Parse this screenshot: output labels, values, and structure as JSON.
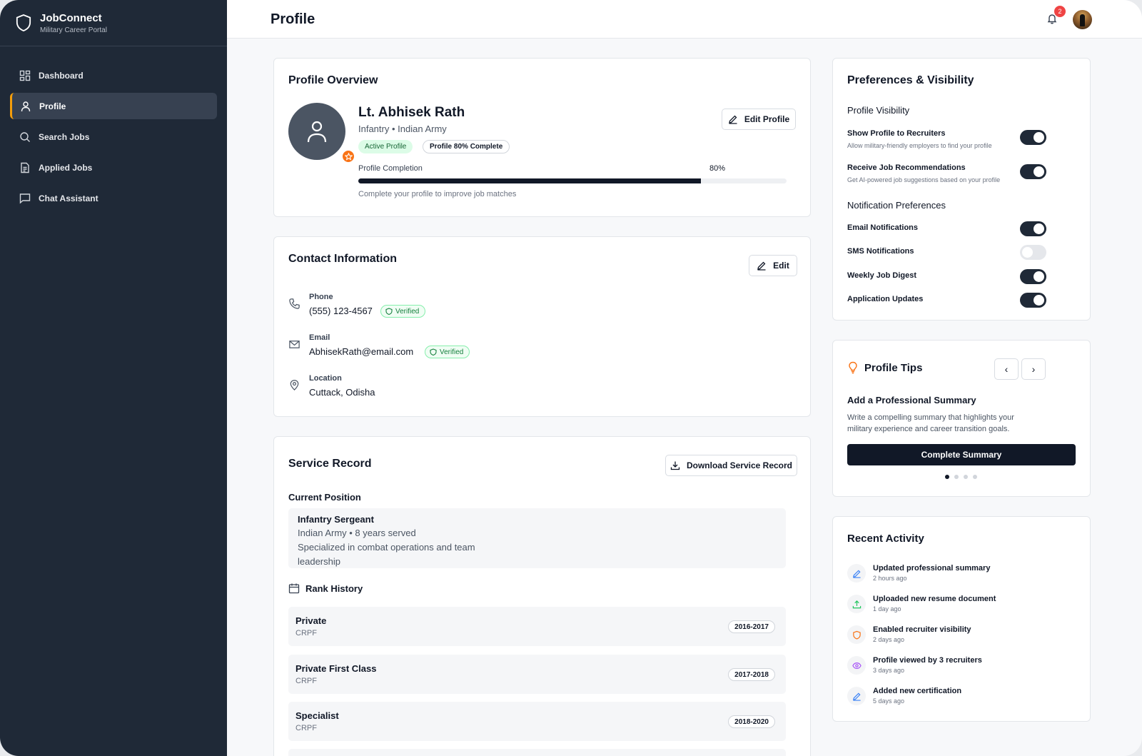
{
  "app": {
    "name": "JobConnect",
    "tagline": "Military Career Portal"
  },
  "sidebar": {
    "items": [
      {
        "label": "Dashboard",
        "icon": "grid-icon"
      },
      {
        "label": "Profile",
        "icon": "user-icon",
        "active": true
      },
      {
        "label": "Search Jobs",
        "icon": "search-icon"
      },
      {
        "label": "Applied Jobs",
        "icon": "document-icon"
      },
      {
        "label": "Chat Assistant",
        "icon": "chat-icon"
      }
    ]
  },
  "header": {
    "title": "Profile",
    "notification_count": "2"
  },
  "overview": {
    "title": "Profile Overview",
    "name": "Lt. Abhisek Rath",
    "subtitle": "Infantry • Indian Army",
    "badge_active": "Active Profile",
    "badge_complete": "Profile 80% Complete",
    "completion_label": "Profile Completion",
    "completion_value": "80%",
    "completion_fraction": 0.8,
    "hint": "Complete your profile to improve job matches",
    "edit_label": "Edit Profile"
  },
  "contact": {
    "title": "Contact Information",
    "edit_label": "Edit",
    "phone_label": "Phone",
    "phone": "(555) 123-4567",
    "email_label": "Email",
    "email": "AbhisekRath@email.com",
    "location_label": "Location",
    "location": "Cuttack, Odisha",
    "verified_label": "Verified"
  },
  "service": {
    "title": "Service Record",
    "download_label": "Download Service Record",
    "current_label": "Current Position",
    "position_title": "Infantry Sergeant",
    "position_meta": "Indian Army • 8 years served",
    "position_desc_1": "Specialized in combat operations and team",
    "position_desc_2": "leadership",
    "rank_history_label": "Rank History",
    "ranks": [
      {
        "title": "Private",
        "unit": "CRPF",
        "years": "2016-2017"
      },
      {
        "title": "Private First Class",
        "unit": "CRPF",
        "years": "2017-2018"
      },
      {
        "title": "Specialist",
        "unit": "CRPF",
        "years": "2018-2020"
      }
    ]
  },
  "preferences": {
    "title": "Preferences & Visibility",
    "visibility_label": "Profile Visibility",
    "show_profile": {
      "label": "Show Profile to Recruiters",
      "desc": "Allow military-friendly employers to find your profile",
      "on": true
    },
    "recommendations": {
      "label": "Receive Job Recommendations",
      "desc": "Get AI-powered job suggestions based on your profile",
      "on": true
    },
    "notifications_label": "Notification Preferences",
    "email": {
      "label": "Email Notifications",
      "on": true
    },
    "sms": {
      "label": "SMS Notifications",
      "on": false
    },
    "digest": {
      "label": "Weekly Job Digest",
      "on": true
    },
    "updates": {
      "label": "Application Updates",
      "on": true
    }
  },
  "tips": {
    "title": "Profile Tips",
    "tip_title": "Add a Professional Summary",
    "tip_text": "Write a compelling summary that highlights your military experience and career transition goals.",
    "button": "Complete Summary",
    "page": 1,
    "pages": 4
  },
  "activity": {
    "title": "Recent Activity",
    "items": [
      {
        "text": "Updated professional summary",
        "time": "2 hours ago",
        "icon": "pencil-icon",
        "color": "#3b82f6"
      },
      {
        "text": "Uploaded new resume document",
        "time": "1 day ago",
        "icon": "upload-icon",
        "color": "#22c55e"
      },
      {
        "text": "Enabled recruiter visibility",
        "time": "2 days ago",
        "icon": "shield-icon",
        "color": "#f97316"
      },
      {
        "text": "Profile viewed by 3 recruiters",
        "time": "3 days ago",
        "icon": "eye-icon",
        "color": "#a855f7"
      },
      {
        "text": "Added new certification",
        "time": "5 days ago",
        "icon": "pencil-icon",
        "color": "#3b82f6"
      }
    ]
  }
}
